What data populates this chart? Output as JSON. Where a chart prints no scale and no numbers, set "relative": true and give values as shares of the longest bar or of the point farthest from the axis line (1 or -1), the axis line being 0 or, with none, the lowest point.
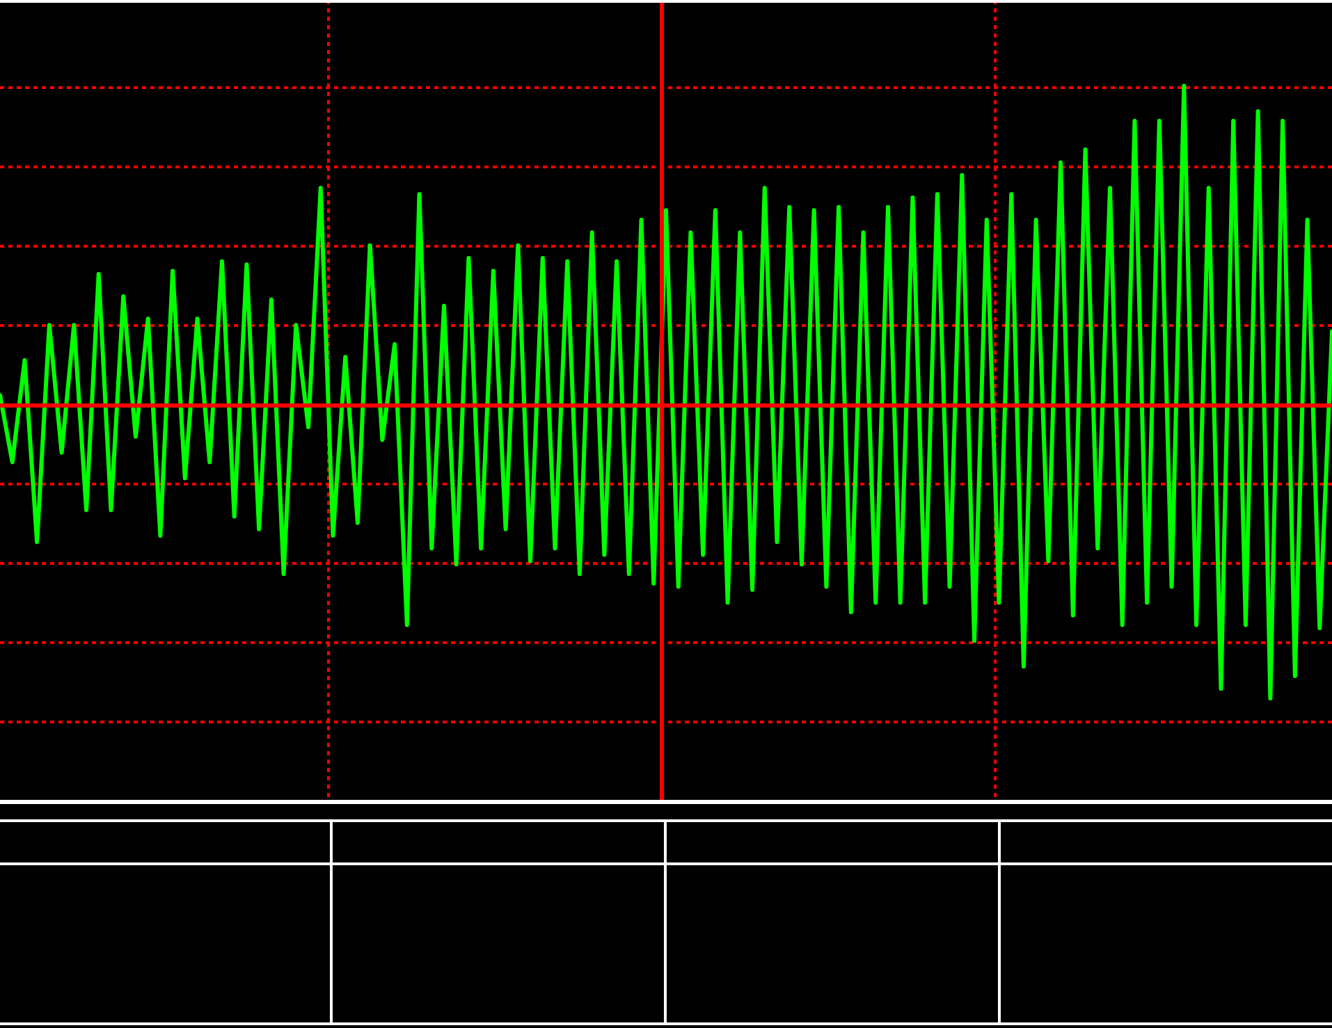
{
  "chart_data": {
    "type": "line",
    "relative": true,
    "grid": true,
    "ref_lines": [
      {
        "axis": "y",
        "value": 0,
        "color": "#ff0000"
      }
    ],
    "categories": [
      null,
      null,
      null,
      null,
      null,
      null,
      null,
      null,
      null,
      null,
      null,
      null,
      null,
      null,
      null,
      null,
      null,
      null,
      null,
      null,
      null,
      null,
      null,
      null,
      null,
      null,
      null,
      null,
      null,
      null,
      null,
      null,
      null,
      null,
      null,
      null,
      null,
      null,
      null,
      null,
      null,
      null,
      null,
      null,
      null,
      null,
      null,
      null,
      null,
      null,
      null,
      null,
      null,
      null,
      null,
      null,
      null,
      null,
      null,
      null,
      null,
      null,
      null,
      null,
      null,
      null,
      null,
      null,
      null,
      null,
      null,
      null,
      null,
      null,
      null,
      null,
      null,
      null,
      null,
      null,
      null,
      null,
      null,
      null,
      null,
      null,
      null,
      null,
      null,
      null,
      null,
      null,
      null,
      null,
      null,
      null,
      null,
      null,
      null,
      null,
      null,
      null,
      null,
      null,
      null,
      null,
      null,
      null,
      null
    ],
    "series": [
      {
        "color": "#00ff00",
        "values": [
          0.03,
          -0.18,
          0.14,
          -0.43,
          0.25,
          -0.15,
          0.25,
          -0.33,
          0.41,
          -0.33,
          0.34,
          -0.1,
          0.27,
          -0.41,
          0.42,
          -0.23,
          0.27,
          -0.18,
          0.45,
          -0.35,
          0.44,
          -0.39,
          0.33,
          -0.53,
          0.25,
          -0.07,
          0.68,
          -0.41,
          0.15,
          -0.37,
          0.5,
          -0.11,
          0.19,
          -0.69,
          0.66,
          -0.45,
          0.31,
          -0.5,
          0.46,
          -0.45,
          0.42,
          -0.39,
          0.5,
          -0.49,
          0.46,
          -0.45,
          0.45,
          -0.53,
          0.54,
          -0.47,
          0.45,
          -0.53,
          0.58,
          -0.56,
          0.61,
          -0.57,
          0.54,
          -0.47,
          0.61,
          -0.62,
          0.54,
          -0.58,
          0.68,
          -0.43,
          0.62,
          -0.5,
          0.61,
          -0.57,
          0.62,
          -0.65,
          0.54,
          -0.62,
          0.62,
          -0.62,
          0.65,
          -0.62,
          0.66,
          -0.57,
          0.72,
          -0.74,
          0.58,
          -0.62,
          0.66,
          -0.82,
          0.58,
          -0.49,
          0.76,
          -0.66,
          0.8,
          -0.45,
          0.68,
          -0.69,
          0.89,
          -0.62,
          0.89,
          -0.57,
          1.0,
          -0.69,
          0.68,
          -0.89,
          0.89,
          -0.69,
          0.92,
          -0.92,
          0.89,
          -0.85,
          0.58,
          -0.7,
          0.23
        ]
      }
    ]
  }
}
